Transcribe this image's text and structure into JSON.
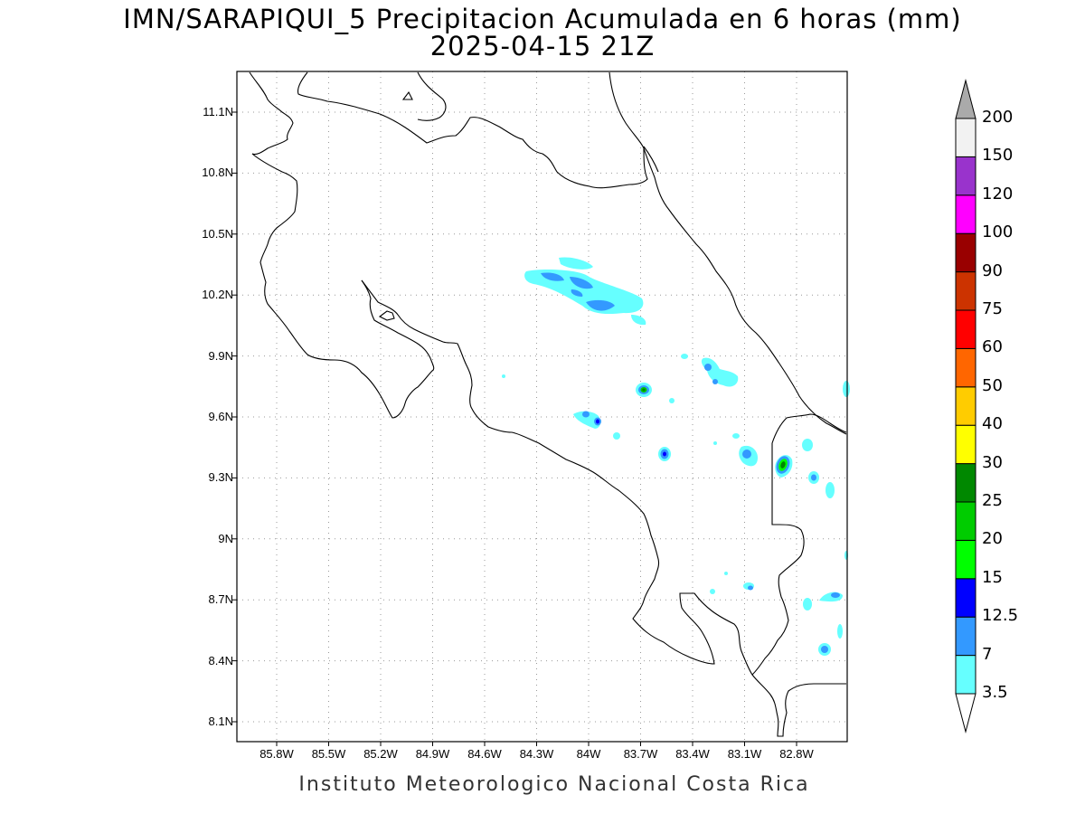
{
  "title": {
    "line1": "IMN/SARAPIQUI_5 Precipitacion Acumulada en 6 horas (mm)",
    "line2": "2025-04-15 21Z"
  },
  "footer": "Instituto Meteorologico Nacional Costa Rica",
  "map": {
    "lat_ticks": [
      "11.1N",
      "10.8N",
      "10.5N",
      "10.2N",
      "9.9N",
      "9.6N",
      "9.3N",
      "9N",
      "8.7N",
      "8.4N",
      "8.1N"
    ],
    "lon_ticks": [
      "85.8W",
      "85.5W",
      "85.2W",
      "84.9W",
      "84.6W",
      "84.3W",
      "84W",
      "83.7W",
      "83.4W",
      "83.1W",
      "82.8W"
    ],
    "gridlines": true
  },
  "colorbar": {
    "labels": [
      "3.5",
      "7",
      "12.5",
      "15",
      "20",
      "25",
      "30",
      "40",
      "50",
      "60",
      "75",
      "90",
      "100",
      "120",
      "150",
      "200"
    ],
    "colors": [
      "#ffffff",
      "#66ffff",
      "#3399ff",
      "#0000ff",
      "#00ff00",
      "#00cc00",
      "#008800",
      "#ffff00",
      "#ffcc00",
      "#ff6600",
      "#ff0000",
      "#cc3300",
      "#990000",
      "#ff00ff",
      "#9933cc",
      "#f2f2f2",
      "#aaaaaa"
    ]
  }
}
